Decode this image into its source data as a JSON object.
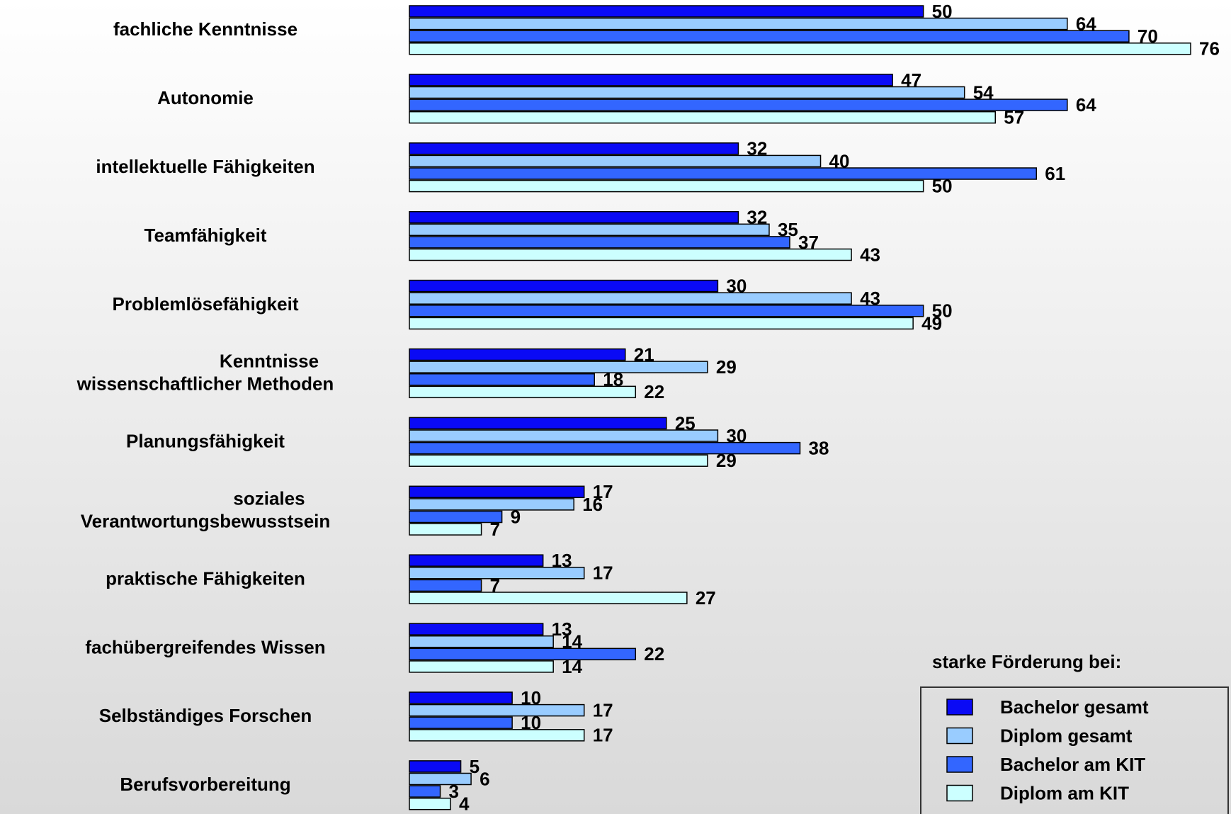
{
  "chart_data": {
    "type": "hbar",
    "categories": [
      "fachliche Kenntnisse",
      "Autonomie",
      "intellektuelle Fähigkeiten",
      "Teamfähigkeit",
      "Problemlösefähigkeit",
      "Kenntnisse\nwissenschaftlicher Methoden",
      "Planungsfähigkeit",
      "soziales\nVerantwortungsbewusstsein",
      "praktische Fähigkeiten",
      "fachübergreifendes Wissen",
      "Selbständiges Forschen",
      "Berufsvorbereitung"
    ],
    "series": [
      {
        "name": "Bachelor gesamt",
        "color": "#0a0af5",
        "values": [
          50,
          47,
          32,
          32,
          30,
          21,
          25,
          17,
          13,
          13,
          10,
          5
        ]
      },
      {
        "name": "Diplom gesamt",
        "color": "#99ccff",
        "values": [
          64,
          54,
          40,
          35,
          43,
          29,
          30,
          16,
          17,
          14,
          17,
          6
        ]
      },
      {
        "name": "Bachelor am KIT",
        "color": "#3366ff",
        "values": [
          70,
          64,
          61,
          37,
          50,
          18,
          38,
          9,
          7,
          22,
          10,
          3
        ]
      },
      {
        "name": "Diplom am KIT",
        "color": "#ccffff",
        "values": [
          76,
          57,
          50,
          43,
          49,
          22,
          29,
          7,
          27,
          14,
          17,
          4
        ]
      }
    ],
    "legend_title": "starke Förderung bei:",
    "legend": "bottom-right"
  }
}
